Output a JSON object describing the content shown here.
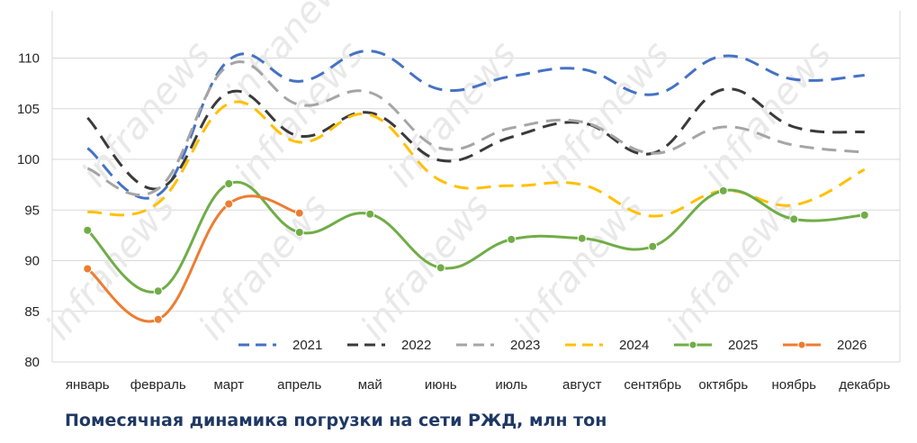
{
  "caption": "Помесячная динамика погрузки на сети РЖД, млн тон",
  "watermark_text": "infranews",
  "chart_data": {
    "type": "line",
    "title": "",
    "xlabel": "",
    "ylabel": "",
    "categories": [
      "январь",
      "февраль",
      "март",
      "апрель",
      "май",
      "июнь",
      "июль",
      "август",
      "сентябрь",
      "октябрь",
      "ноябрь",
      "декабрь"
    ],
    "ylim": [
      80,
      112
    ],
    "yticks": [
      80,
      85,
      90,
      95,
      100,
      105,
      110
    ],
    "grid": "horizontal",
    "legend_position": "bottom-right",
    "series": [
      {
        "name": "2021",
        "color": "#4472c4",
        "style": "dashed",
        "values": [
          101.1,
          96.5,
          109.8,
          107.7,
          110.7,
          106.9,
          108.2,
          108.9,
          106.4,
          110.2,
          107.9,
          108.3
        ]
      },
      {
        "name": "2022",
        "color": "#3a3a3a",
        "style": "dashed",
        "values": [
          104.1,
          97.1,
          106.6,
          102.3,
          104.6,
          99.9,
          102.2,
          103.6,
          100.6,
          106.9,
          103.2,
          102.7
        ]
      },
      {
        "name": "2023",
        "color": "#a5a5a5",
        "style": "dashed",
        "values": [
          99.1,
          97.1,
          109.3,
          105.4,
          106.6,
          101.1,
          103.1,
          103.7,
          100.6,
          103.2,
          101.4,
          100.7
        ]
      },
      {
        "name": "2024",
        "color": "#ffc000",
        "style": "dashed",
        "values": [
          94.8,
          95.7,
          105.5,
          101.7,
          104.4,
          97.9,
          97.4,
          97.5,
          94.4,
          96.9,
          95.5,
          99.0
        ]
      },
      {
        "name": "2025",
        "color": "#70ad47",
        "style": "solid-markers",
        "values": [
          93.0,
          87.0,
          97.6,
          92.8,
          94.6,
          89.3,
          92.1,
          92.2,
          91.4,
          96.9,
          94.1,
          94.5
        ]
      },
      {
        "name": "2026",
        "color": "#ed7d31",
        "style": "solid-markers",
        "values": [
          89.2,
          84.2,
          95.6,
          94.7,
          null,
          null,
          null,
          null,
          null,
          null,
          null,
          null
        ]
      }
    ]
  }
}
